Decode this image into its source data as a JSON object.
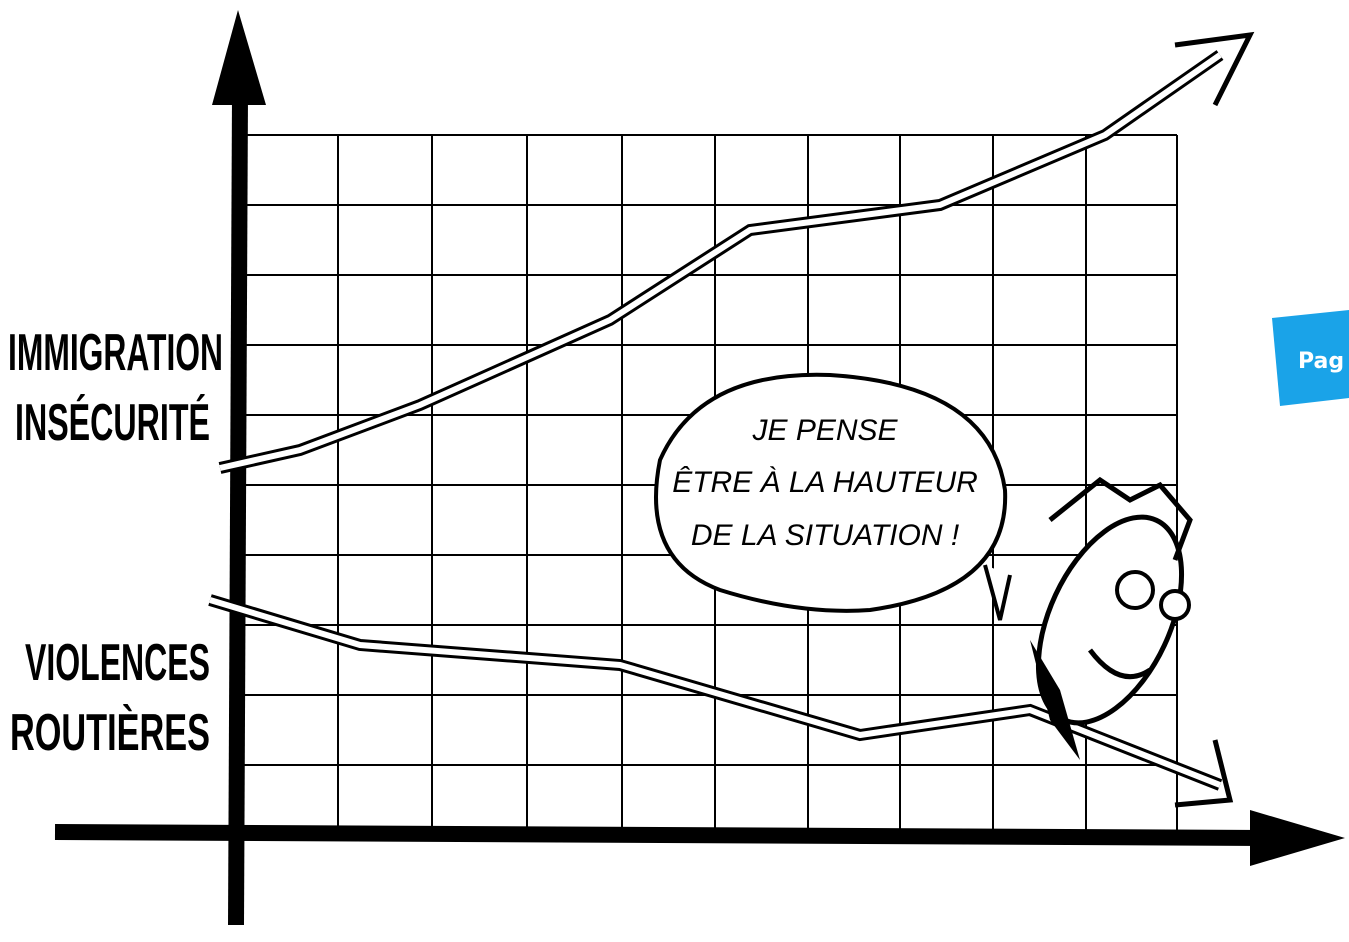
{
  "labels": {
    "upper": [
      "IMMIGRATION",
      "INSÉCURITÉ"
    ],
    "lower": [
      "VIOLENCES",
      "ROUTIÈRES"
    ]
  },
  "bubble": {
    "lines": [
      "JE PENSE",
      "ÊTRE À LA HAUTEUR",
      "DE LA SITUATION !"
    ]
  },
  "badge": {
    "text": "Pag"
  }
}
